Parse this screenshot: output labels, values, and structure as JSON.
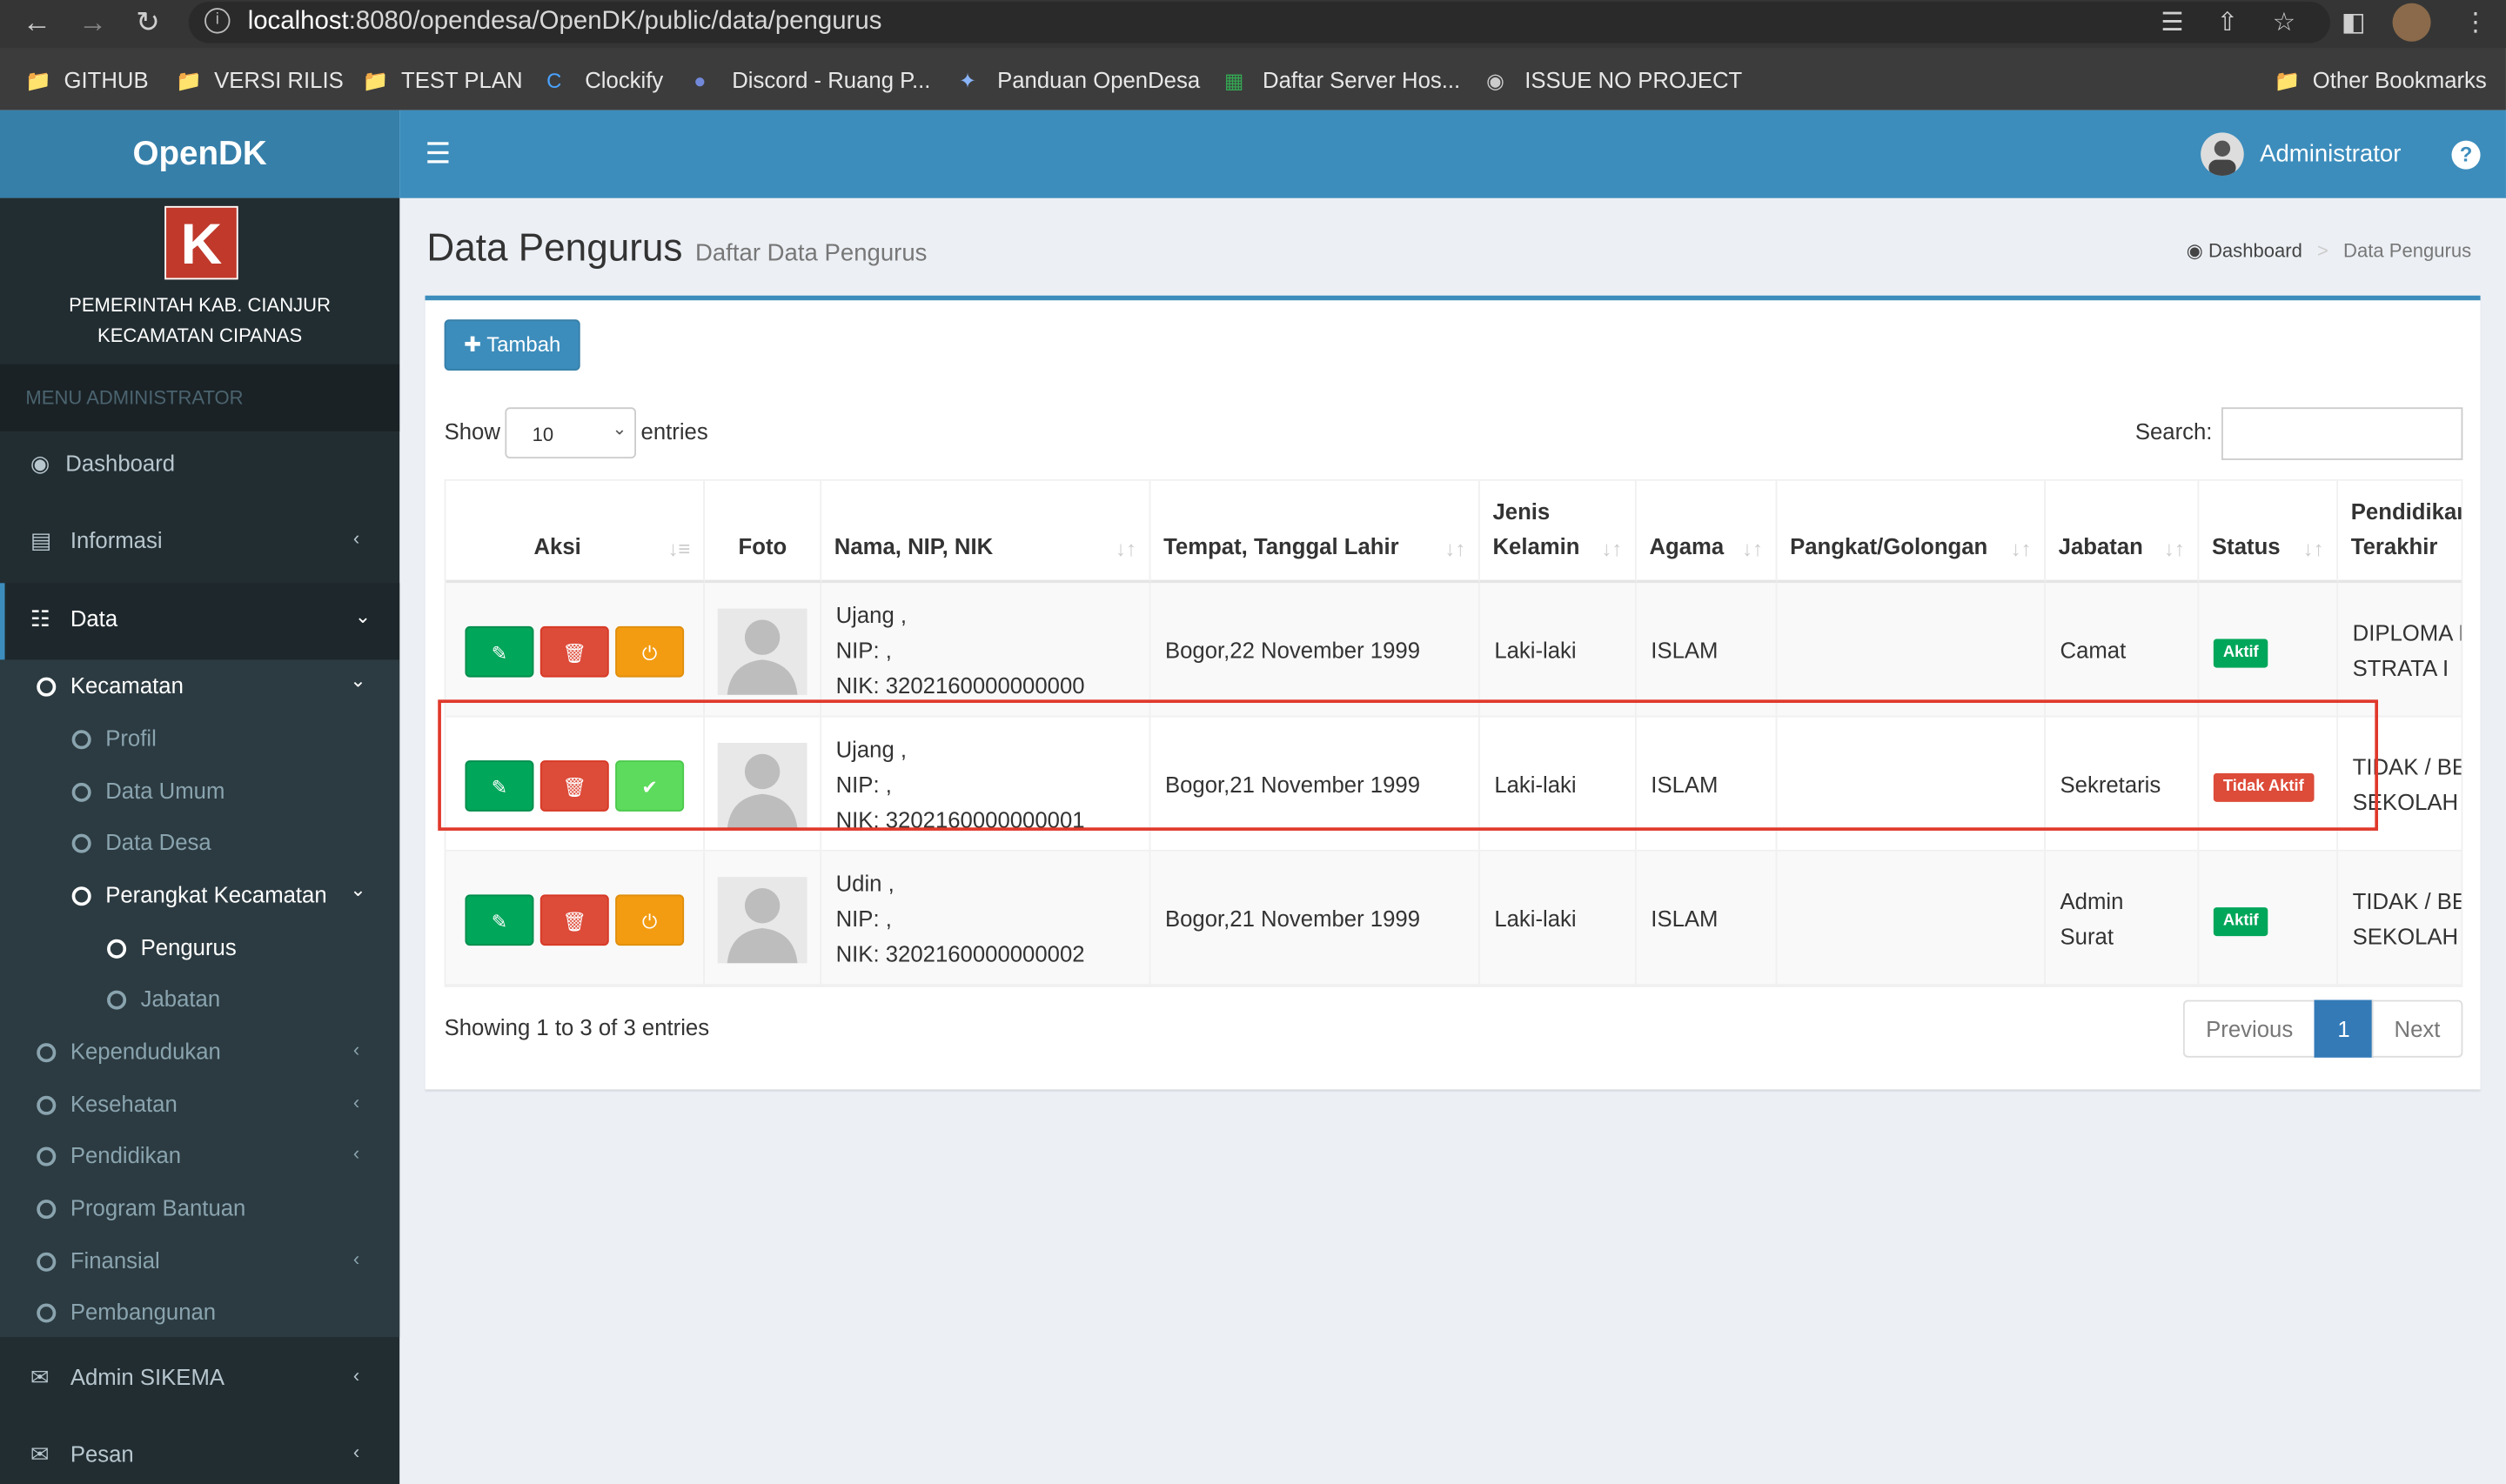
{
  "browser": {
    "url_host": "localhost",
    "url_rest": ":8080/opendesa/OpenDK/public/data/pengurus",
    "bookmarks": [
      {
        "label": "GITHUB",
        "icon": "folder-icon"
      },
      {
        "label": "VERSI RILIS",
        "icon": "folder-icon"
      },
      {
        "label": "TEST PLAN",
        "icon": "folder-icon"
      },
      {
        "label": "Clockify",
        "icon": "clockify-icon"
      },
      {
        "label": "Discord - Ruang P...",
        "icon": "discord-icon"
      },
      {
        "label": "Panduan OpenDesa",
        "icon": "opendesa-icon"
      },
      {
        "label": "Daftar Server Hos...",
        "icon": "sheets-icon"
      },
      {
        "label": "ISSUE NO PROJECT",
        "icon": "github-icon"
      }
    ],
    "other_bookmarks": "Other Bookmarks"
  },
  "header": {
    "brand": "OpenDK",
    "user": "Administrator"
  },
  "sidebar": {
    "logo_letter": "K",
    "gov_line1": "PEMERINTAH KAB. CIANJUR",
    "gov_line2": "KECAMATAN CIPANAS",
    "menu_header": "MENU ADMINISTRATOR",
    "items": {
      "dashboard": "Dashboard",
      "informasi": "Informasi",
      "data": "Data",
      "kecamatan": "Kecamatan",
      "profil": "Profil",
      "data_umum": "Data Umum",
      "data_desa": "Data Desa",
      "perangkat": "Perangkat Kecamatan",
      "pengurus": "Pengurus",
      "jabatan": "Jabatan",
      "kependudukan": "Kependudukan",
      "kesehatan": "Kesehatan",
      "pendidikan": "Pendidikan",
      "program_bantuan": "Program Bantuan",
      "finansial": "Finansial",
      "pembangunan": "Pembangunan",
      "admin_sikema": "Admin SIKEMA",
      "pesan": "Pesan"
    }
  },
  "page": {
    "title": "Data Pengurus",
    "subtitle": "Daftar Data Pengurus",
    "breadcrumb_home": "Dashboard",
    "breadcrumb_current": "Data Pengurus",
    "add_button": "Tambah",
    "show_label": "Show",
    "entries_value": "10",
    "entries_label": "entries",
    "search_label": "Search:",
    "showing": "Showing 1 to 3 of 3 entries",
    "pagination": {
      "previous": "Previous",
      "current": "1",
      "next": "Next"
    }
  },
  "table": {
    "headers": {
      "aksi": "Aksi",
      "foto": "Foto",
      "nama": "Nama, NIP, NIK",
      "ttl": "Tempat, Tanggal Lahir",
      "jk1": "Jenis",
      "jk2": "Kelamin",
      "agama": "Agama",
      "pangkat": "Pangkat/Golongan",
      "jabatan": "Jabatan",
      "status": "Status",
      "pend1": "Pendidikan",
      "pend2": "Terakhir"
    },
    "rows": [
      {
        "nama": "Ujang ,",
        "nip": "NIP: ,",
        "nik": "NIK: 3202160000000000",
        "ttl": "Bogor,22 November 1999",
        "jk": "Laki-laki",
        "agama": "ISLAM",
        "jabatan1": "Camat",
        "jabatan2": "",
        "status": "Aktif",
        "pend1": "DIPLOMA IV",
        "pend2": "STRATA I"
      },
      {
        "nama": "Ujang ,",
        "nip": "NIP: ,",
        "nik": "NIK: 3202160000000001",
        "ttl": "Bogor,21 November 1999",
        "jk": "Laki-laki",
        "agama": "ISLAM",
        "jabatan1": "Sekretaris",
        "jabatan2": "",
        "status": "Tidak Aktif",
        "pend1": "TIDAK / BELUM",
        "pend2": "SEKOLAH"
      },
      {
        "nama": "Udin ,",
        "nip": "NIP: ,",
        "nik": "NIK: 3202160000000002",
        "ttl": "Bogor,21 November 1999",
        "jk": "Laki-laki",
        "agama": "ISLAM",
        "jabatan1": "Admin",
        "jabatan2": "Surat",
        "status": "Aktif",
        "pend1": "TIDAK / BELUM",
        "pend2": "SEKOLAH"
      }
    ]
  },
  "colors": {
    "primary": "#3c8dbc",
    "sidebar": "#222d32",
    "success": "#00a65a",
    "danger": "#dd4b39",
    "warning": "#f39c12",
    "highlight": "#e0392b"
  }
}
